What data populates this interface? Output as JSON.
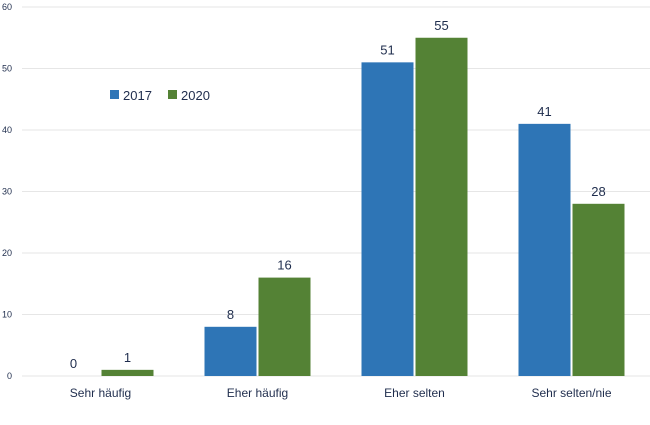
{
  "chart_data": {
    "type": "bar",
    "title": "",
    "xlabel": "",
    "ylabel": "",
    "categories": [
      "Sehr häufig",
      "Eher häufig",
      "Eher selten",
      "Sehr selten/nie"
    ],
    "series": [
      {
        "name": "2017",
        "color": "#2e75b6",
        "values": [
          0,
          8,
          51,
          41
        ],
        "labels": [
          "0",
          "8",
          "51",
          "41"
        ]
      },
      {
        "name": "2020",
        "color": "#548235",
        "values": [
          1,
          16,
          55,
          28
        ],
        "labels": [
          "1",
          "16",
          "55",
          "28"
        ]
      }
    ],
    "ylim": [
      0,
      60
    ],
    "yticks": [
      "0",
      "10",
      "20",
      "30",
      "40",
      "50",
      "60"
    ],
    "ytick_values": [
      0,
      10,
      20,
      30,
      40,
      50,
      60
    ],
    "grid": true,
    "legend": "top-left",
    "gridline_color": "#e6e6e6",
    "text_color": "#1f2d4d"
  }
}
